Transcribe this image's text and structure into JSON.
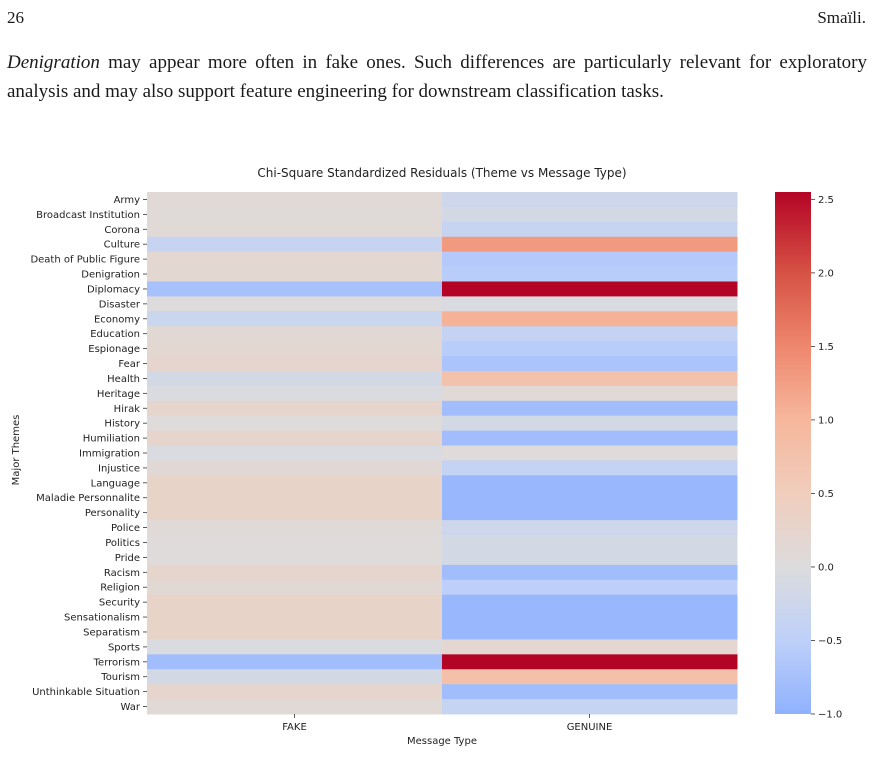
{
  "page": {
    "number": "26",
    "author": "Smaïli."
  },
  "paragraph": {
    "lead_italic": "Denigration",
    "text": " may appear more often in fake ones. Such differences are particularly relevant for exploratory analysis and may also support feature engineering for downstream classification tasks."
  },
  "chart_data": {
    "type": "heatmap",
    "title": "Chi-Square Standardized Residuals (Theme vs Message Type)",
    "xlabel": "Message Type",
    "ylabel": "Major Themes",
    "columns": [
      "FAKE",
      "GENUINE"
    ],
    "rows": [
      "Army",
      "Broadcast Institution",
      "Corona",
      "Culture",
      "Death of Public Figure",
      "Denigration",
      "Diplomacy",
      "Disaster",
      "Economy",
      "Education",
      "Espionage",
      "Fear",
      "Health",
      "Heritage",
      "Hirak",
      "History",
      "Humiliation",
      "Immigration",
      "Injustice",
      "Language",
      "Maladie Personnalite",
      "Personality",
      "Police",
      "Politics",
      "Pride",
      "Racism",
      "Religion",
      "Security",
      "Sensationalism",
      "Separatism",
      "Sports",
      "Terrorism",
      "Tourism",
      "Unthinkable Situation",
      "War"
    ],
    "values": [
      [
        0.1,
        -0.25
      ],
      [
        0.08,
        -0.15
      ],
      [
        0.1,
        -0.35
      ],
      [
        -0.35,
        1.3
      ],
      [
        0.2,
        -0.6
      ],
      [
        0.18,
        -0.55
      ],
      [
        -0.75,
        2.55
      ],
      [
        0.02,
        -0.05
      ],
      [
        -0.3,
        1.05
      ],
      [
        0.15,
        -0.4
      ],
      [
        0.18,
        -0.55
      ],
      [
        0.22,
        -0.7
      ],
      [
        -0.15,
        0.75
      ],
      [
        -0.05,
        0.1
      ],
      [
        0.25,
        -0.8
      ],
      [
        0.05,
        -0.15
      ],
      [
        0.25,
        -0.8
      ],
      [
        -0.05,
        0.05
      ],
      [
        0.12,
        -0.4
      ],
      [
        0.3,
        -0.9
      ],
      [
        0.3,
        -0.9
      ],
      [
        0.3,
        -0.9
      ],
      [
        0.08,
        -0.25
      ],
      [
        0.05,
        -0.15
      ],
      [
        0.05,
        -0.15
      ],
      [
        0.25,
        -0.8
      ],
      [
        0.15,
        -0.5
      ],
      [
        0.3,
        -0.9
      ],
      [
        0.3,
        -0.9
      ],
      [
        0.3,
        -0.9
      ],
      [
        -0.05,
        0.2
      ],
      [
        -0.8,
        2.55
      ],
      [
        -0.15,
        0.8
      ],
      [
        0.25,
        -0.8
      ],
      [
        0.1,
        -0.35
      ]
    ],
    "colorbar": {
      "colormap": "coolwarm",
      "vmin": -1.0,
      "vmax": 2.55,
      "ticks": [
        2.5,
        2.0,
        1.5,
        1.0,
        0.5,
        0.0,
        -0.5,
        -1.0
      ],
      "tick_labels": [
        "2.5",
        "2.0",
        "1.5",
        "1.0",
        "0.5",
        "0.0",
        "−0.5",
        "−1.0"
      ]
    }
  }
}
